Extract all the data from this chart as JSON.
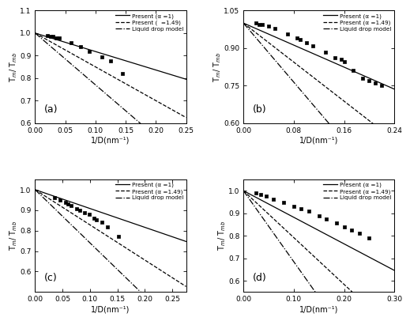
{
  "subplots": [
    {
      "label": "(a)",
      "xlabel": "1/D(nm⁻¹)",
      "ylabel": "T$_m$/ T$_{mb}$",
      "xlim": [
        0.0,
        0.25
      ],
      "ylim": [
        0.6,
        1.1
      ],
      "xticks": [
        0.0,
        0.05,
        0.1,
        0.15,
        0.2,
        0.25
      ],
      "yticks": [
        0.6,
        0.7,
        0.8,
        0.9,
        1.0,
        1.1
      ],
      "line1_slope": -0.82,
      "line2_slope": -1.5,
      "line3_slope": -2.3,
      "data_x": [
        0.02,
        0.025,
        0.03,
        0.035,
        0.04,
        0.06,
        0.075,
        0.09,
        0.11,
        0.125,
        0.145
      ],
      "data_y": [
        0.99,
        0.987,
        0.984,
        0.98,
        0.977,
        0.958,
        0.94,
        0.92,
        0.895,
        0.875,
        0.82
      ]
    },
    {
      "label": "(b)",
      "xlabel": "1/D(nm⁻¹)",
      "ylabel": "T$_m$/ T$_{mb}$",
      "xlim": [
        0.0,
        0.24
      ],
      "ylim": [
        0.6,
        1.05
      ],
      "xticks": [
        0.0,
        0.08,
        0.16,
        0.24
      ],
      "yticks": [
        0.6,
        0.75,
        0.9,
        1.05
      ],
      "line1_slope": -1.1,
      "line2_slope": -1.95,
      "line3_slope": -2.95,
      "data_x": [
        0.02,
        0.025,
        0.03,
        0.04,
        0.05,
        0.07,
        0.085,
        0.09,
        0.1,
        0.11,
        0.13,
        0.145,
        0.155,
        0.16,
        0.175,
        0.19,
        0.2,
        0.21,
        0.22
      ],
      "data_y": [
        1.0,
        0.995,
        0.993,
        0.988,
        0.98,
        0.955,
        0.94,
        0.935,
        0.92,
        0.91,
        0.885,
        0.86,
        0.855,
        0.845,
        0.81,
        0.78,
        0.77,
        0.76,
        0.75
      ]
    },
    {
      "label": "(c)",
      "xlabel": "1/D(nm⁻¹)",
      "ylabel": "T$_m$/ T$_{mb}$",
      "xlim": [
        0.0,
        0.275
      ],
      "ylim": [
        0.5,
        1.05
      ],
      "xticks": [
        0.0,
        0.05,
        0.1,
        0.15,
        0.2,
        0.25
      ],
      "yticks": [
        0.6,
        0.7,
        0.8,
        0.9,
        1.0
      ],
      "line1_slope": -0.92,
      "line2_slope": -1.72,
      "line3_slope": -2.6,
      "data_x": [
        0.035,
        0.045,
        0.055,
        0.06,
        0.065,
        0.075,
        0.082,
        0.09,
        0.098,
        0.108,
        0.112,
        0.122,
        0.132,
        0.152
      ],
      "data_y": [
        0.962,
        0.95,
        0.938,
        0.93,
        0.922,
        0.908,
        0.9,
        0.888,
        0.878,
        0.86,
        0.852,
        0.84,
        0.818,
        0.77
      ]
    },
    {
      "label": "(d)",
      "xlabel": "1/D(nm⁻¹)",
      "ylabel": "T$_m$/ T$_{mb}$",
      "xlim": [
        0.0,
        0.3
      ],
      "ylim": [
        0.55,
        1.05
      ],
      "xticks": [
        0.0,
        0.1,
        0.2,
        0.3
      ],
      "yticks": [
        0.6,
        0.7,
        0.8,
        0.9,
        1.0
      ],
      "line1_slope": -1.18,
      "line2_slope": -2.08,
      "line3_slope": -3.15,
      "data_x": [
        0.025,
        0.035,
        0.045,
        0.06,
        0.08,
        0.1,
        0.115,
        0.13,
        0.15,
        0.165,
        0.185,
        0.2,
        0.215,
        0.23,
        0.25
      ],
      "data_y": [
        0.99,
        0.983,
        0.975,
        0.963,
        0.948,
        0.932,
        0.92,
        0.908,
        0.89,
        0.875,
        0.858,
        0.84,
        0.825,
        0.81,
        0.79
      ]
    }
  ],
  "legend_labels_a": [
    "Present (α =1)",
    "Present (  =1.49)",
    "Liquid drop model"
  ],
  "legend_labels": [
    "Present (α =1)",
    "Present (α =1.49)",
    "Liquid drop model"
  ],
  "bg_color": "white"
}
